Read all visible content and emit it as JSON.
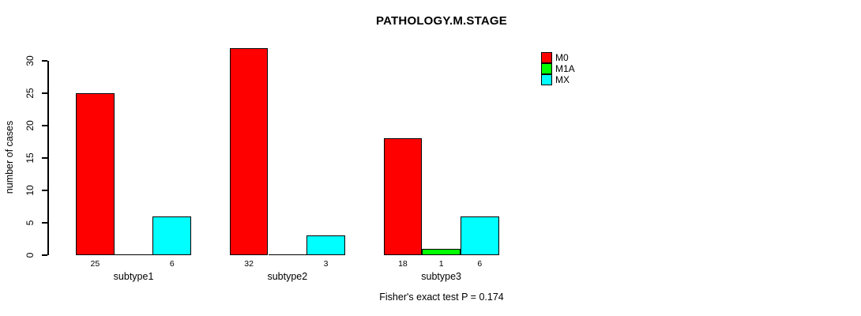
{
  "chart_data": {
    "type": "bar",
    "title": "PATHOLOGY.M.STAGE",
    "categories": [
      "subtype1",
      "subtype2",
      "subtype3"
    ],
    "series": [
      {
        "name": "M0",
        "color": "#FF0000",
        "values": [
          25,
          32,
          18
        ]
      },
      {
        "name": "M1A",
        "color": "#00FF00",
        "values": [
          0,
          0,
          1
        ]
      },
      {
        "name": "MX",
        "color": "#00FFFF",
        "values": [
          6,
          3,
          6
        ]
      }
    ],
    "bar_value_labels": [
      [
        "25",
        null,
        "6"
      ],
      [
        "32",
        null,
        "3"
      ],
      [
        "18",
        "1",
        "6"
      ]
    ],
    "xlabel": "",
    "ylabel": "number of cases",
    "ylim": [
      0,
      32
    ],
    "yticks": [
      "0",
      "5",
      "10",
      "15",
      "20",
      "25",
      "30"
    ],
    "grid": false,
    "legend": {
      "position": "top-right",
      "entries": [
        "M0",
        "M1A",
        "MX"
      ]
    },
    "annotation": "Fisher's exact test P = 0.174",
    "notes": "zero-value bars drawn as flat line at baseline; value labels shown under each non-zero bar"
  }
}
